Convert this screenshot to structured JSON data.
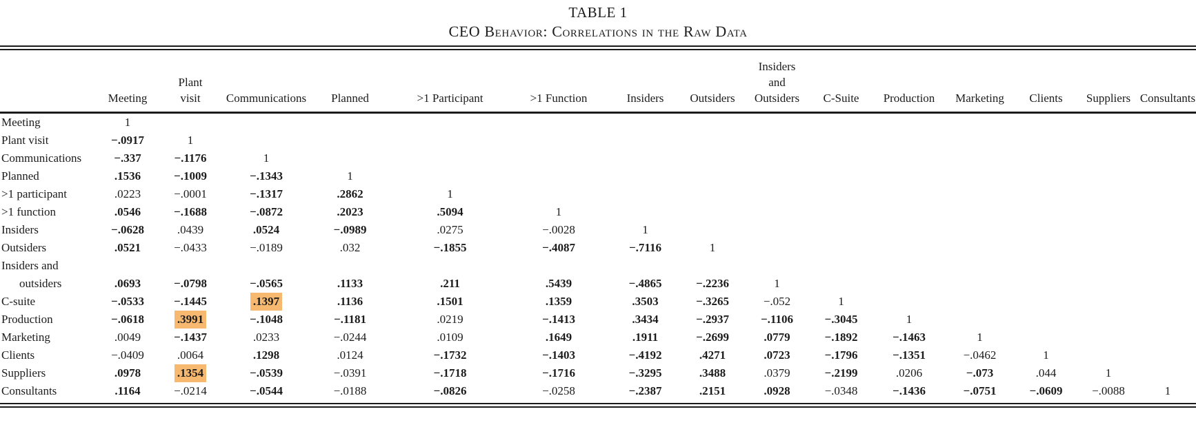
{
  "title": "TABLE 1",
  "subtitle": "CEO Behavior: Correlations in the Raw Data",
  "highlight_color": "#f6b96f",
  "table": {
    "columns": [
      [
        "Meeting"
      ],
      [
        "Plant",
        "visit"
      ],
      [
        "Communications"
      ],
      [
        "Planned"
      ],
      [
        ">1 Participant"
      ],
      [
        ">1 Function"
      ],
      [
        "Insiders"
      ],
      [
        "Outsiders"
      ],
      [
        "Insiders",
        "and",
        "Outsiders"
      ],
      [
        "C-Suite"
      ],
      [
        "Production"
      ],
      [
        "Marketing"
      ],
      [
        "Clients"
      ],
      [
        "Suppliers"
      ],
      [
        "Consultants"
      ]
    ],
    "rows": [
      {
        "label_lines": [
          "Meeting"
        ],
        "cells": [
          {
            "v": "1"
          }
        ]
      },
      {
        "label_lines": [
          "Plant visit"
        ],
        "cells": [
          {
            "v": "−.0917",
            "b": 1
          },
          {
            "v": "1"
          }
        ]
      },
      {
        "label_lines": [
          "Communications"
        ],
        "cells": [
          {
            "v": "−.337",
            "b": 1
          },
          {
            "v": "−.1176",
            "b": 1
          },
          {
            "v": "1"
          }
        ]
      },
      {
        "label_lines": [
          "Planned"
        ],
        "cells": [
          {
            "v": ".1536",
            "b": 1
          },
          {
            "v": "−.1009",
            "b": 1
          },
          {
            "v": "−.1343",
            "b": 1
          },
          {
            "v": "1"
          }
        ]
      },
      {
        "label_lines": [
          ">1 participant"
        ],
        "cells": [
          {
            "v": ".0223"
          },
          {
            "v": "−.0001"
          },
          {
            "v": "−.1317",
            "b": 1
          },
          {
            "v": ".2862",
            "b": 1
          },
          {
            "v": "1"
          }
        ]
      },
      {
        "label_lines": [
          ">1 function"
        ],
        "cells": [
          {
            "v": ".0546",
            "b": 1
          },
          {
            "v": "−.1688",
            "b": 1
          },
          {
            "v": "−.0872",
            "b": 1
          },
          {
            "v": ".2023",
            "b": 1
          },
          {
            "v": ".5094",
            "b": 1
          },
          {
            "v": "1"
          }
        ]
      },
      {
        "label_lines": [
          "Insiders"
        ],
        "cells": [
          {
            "v": "−.0628",
            "b": 1
          },
          {
            "v": ".0439"
          },
          {
            "v": ".0524",
            "b": 1
          },
          {
            "v": "−.0989",
            "b": 1
          },
          {
            "v": ".0275"
          },
          {
            "v": "−.0028"
          },
          {
            "v": "1"
          }
        ]
      },
      {
        "label_lines": [
          "Outsiders"
        ],
        "cells": [
          {
            "v": ".0521",
            "b": 1
          },
          {
            "v": "−.0433"
          },
          {
            "v": "−.0189"
          },
          {
            "v": ".032"
          },
          {
            "v": "−.1855",
            "b": 1
          },
          {
            "v": "−.4087",
            "b": 1
          },
          {
            "v": "−.7116",
            "b": 1
          },
          {
            "v": "1"
          }
        ]
      },
      {
        "label_lines": [
          "Insiders and",
          "outsiders"
        ],
        "cells": [
          {
            "v": ".0693",
            "b": 1
          },
          {
            "v": "−.0798",
            "b": 1
          },
          {
            "v": "−.0565",
            "b": 1
          },
          {
            "v": ".1133",
            "b": 1
          },
          {
            "v": ".211",
            "b": 1
          },
          {
            "v": ".5439",
            "b": 1
          },
          {
            "v": "−.4865",
            "b": 1
          },
          {
            "v": "−.2236",
            "b": 1
          },
          {
            "v": "1"
          }
        ]
      },
      {
        "label_lines": [
          "C-suite"
        ],
        "cells": [
          {
            "v": "−.0533",
            "b": 1
          },
          {
            "v": "−.1445",
            "b": 1
          },
          {
            "v": ".1397",
            "b": 1,
            "h": 1
          },
          {
            "v": ".1136",
            "b": 1
          },
          {
            "v": ".1501",
            "b": 1
          },
          {
            "v": ".1359",
            "b": 1
          },
          {
            "v": ".3503",
            "b": 1
          },
          {
            "v": "−.3265",
            "b": 1
          },
          {
            "v": "−.052"
          },
          {
            "v": "1"
          }
        ]
      },
      {
        "label_lines": [
          "Production"
        ],
        "cells": [
          {
            "v": "−.0618",
            "b": 1
          },
          {
            "v": ".3991",
            "b": 1,
            "h": 1
          },
          {
            "v": "−.1048",
            "b": 1
          },
          {
            "v": "−.1181",
            "b": 1
          },
          {
            "v": ".0219"
          },
          {
            "v": "−.1413",
            "b": 1
          },
          {
            "v": ".3434",
            "b": 1
          },
          {
            "v": "−.2937",
            "b": 1
          },
          {
            "v": "−.1106",
            "b": 1
          },
          {
            "v": "−.3045",
            "b": 1
          },
          {
            "v": "1"
          }
        ]
      },
      {
        "label_lines": [
          "Marketing"
        ],
        "cells": [
          {
            "v": ".0049"
          },
          {
            "v": "−.1437",
            "b": 1
          },
          {
            "v": ".0233"
          },
          {
            "v": "−.0244"
          },
          {
            "v": ".0109"
          },
          {
            "v": ".1649",
            "b": 1
          },
          {
            "v": ".1911",
            "b": 1
          },
          {
            "v": "−.2699",
            "b": 1
          },
          {
            "v": ".0779",
            "b": 1
          },
          {
            "v": "−.1892",
            "b": 1
          },
          {
            "v": "−.1463",
            "b": 1
          },
          {
            "v": "1"
          }
        ]
      },
      {
        "label_lines": [
          "Clients"
        ],
        "cells": [
          {
            "v": "−.0409"
          },
          {
            "v": ".0064"
          },
          {
            "v": ".1298",
            "b": 1
          },
          {
            "v": ".0124"
          },
          {
            "v": "−.1732",
            "b": 1
          },
          {
            "v": "−.1403",
            "b": 1
          },
          {
            "v": "−.4192",
            "b": 1
          },
          {
            "v": ".4271",
            "b": 1
          },
          {
            "v": ".0723",
            "b": 1
          },
          {
            "v": "−.1796",
            "b": 1
          },
          {
            "v": "−.1351",
            "b": 1
          },
          {
            "v": "−.0462"
          },
          {
            "v": "1"
          }
        ]
      },
      {
        "label_lines": [
          "Suppliers"
        ],
        "cells": [
          {
            "v": ".0978",
            "b": 1
          },
          {
            "v": ".1354",
            "b": 1,
            "h": 1
          },
          {
            "v": "−.0539",
            "b": 1
          },
          {
            "v": "−.0391"
          },
          {
            "v": "−.1718",
            "b": 1
          },
          {
            "v": "−.1716",
            "b": 1
          },
          {
            "v": "−.3295",
            "b": 1
          },
          {
            "v": ".3488",
            "b": 1
          },
          {
            "v": ".0379"
          },
          {
            "v": "−.2199",
            "b": 1
          },
          {
            "v": ".0206"
          },
          {
            "v": "−.073",
            "b": 1
          },
          {
            "v": ".044"
          },
          {
            "v": "1"
          }
        ]
      },
      {
        "label_lines": [
          "Consultants"
        ],
        "cells": [
          {
            "v": ".1164",
            "b": 1
          },
          {
            "v": "−.0214"
          },
          {
            "v": "−.0544",
            "b": 1
          },
          {
            "v": "−.0188"
          },
          {
            "v": "−.0826",
            "b": 1
          },
          {
            "v": "−.0258"
          },
          {
            "v": "−.2387",
            "b": 1
          },
          {
            "v": ".2151",
            "b": 1
          },
          {
            "v": ".0928",
            "b": 1
          },
          {
            "v": "−.0348"
          },
          {
            "v": "−.1436",
            "b": 1
          },
          {
            "v": "−.0751",
            "b": 1
          },
          {
            "v": "−.0609",
            "b": 1
          },
          {
            "v": "−.0088"
          },
          {
            "v": "1"
          }
        ]
      }
    ]
  }
}
